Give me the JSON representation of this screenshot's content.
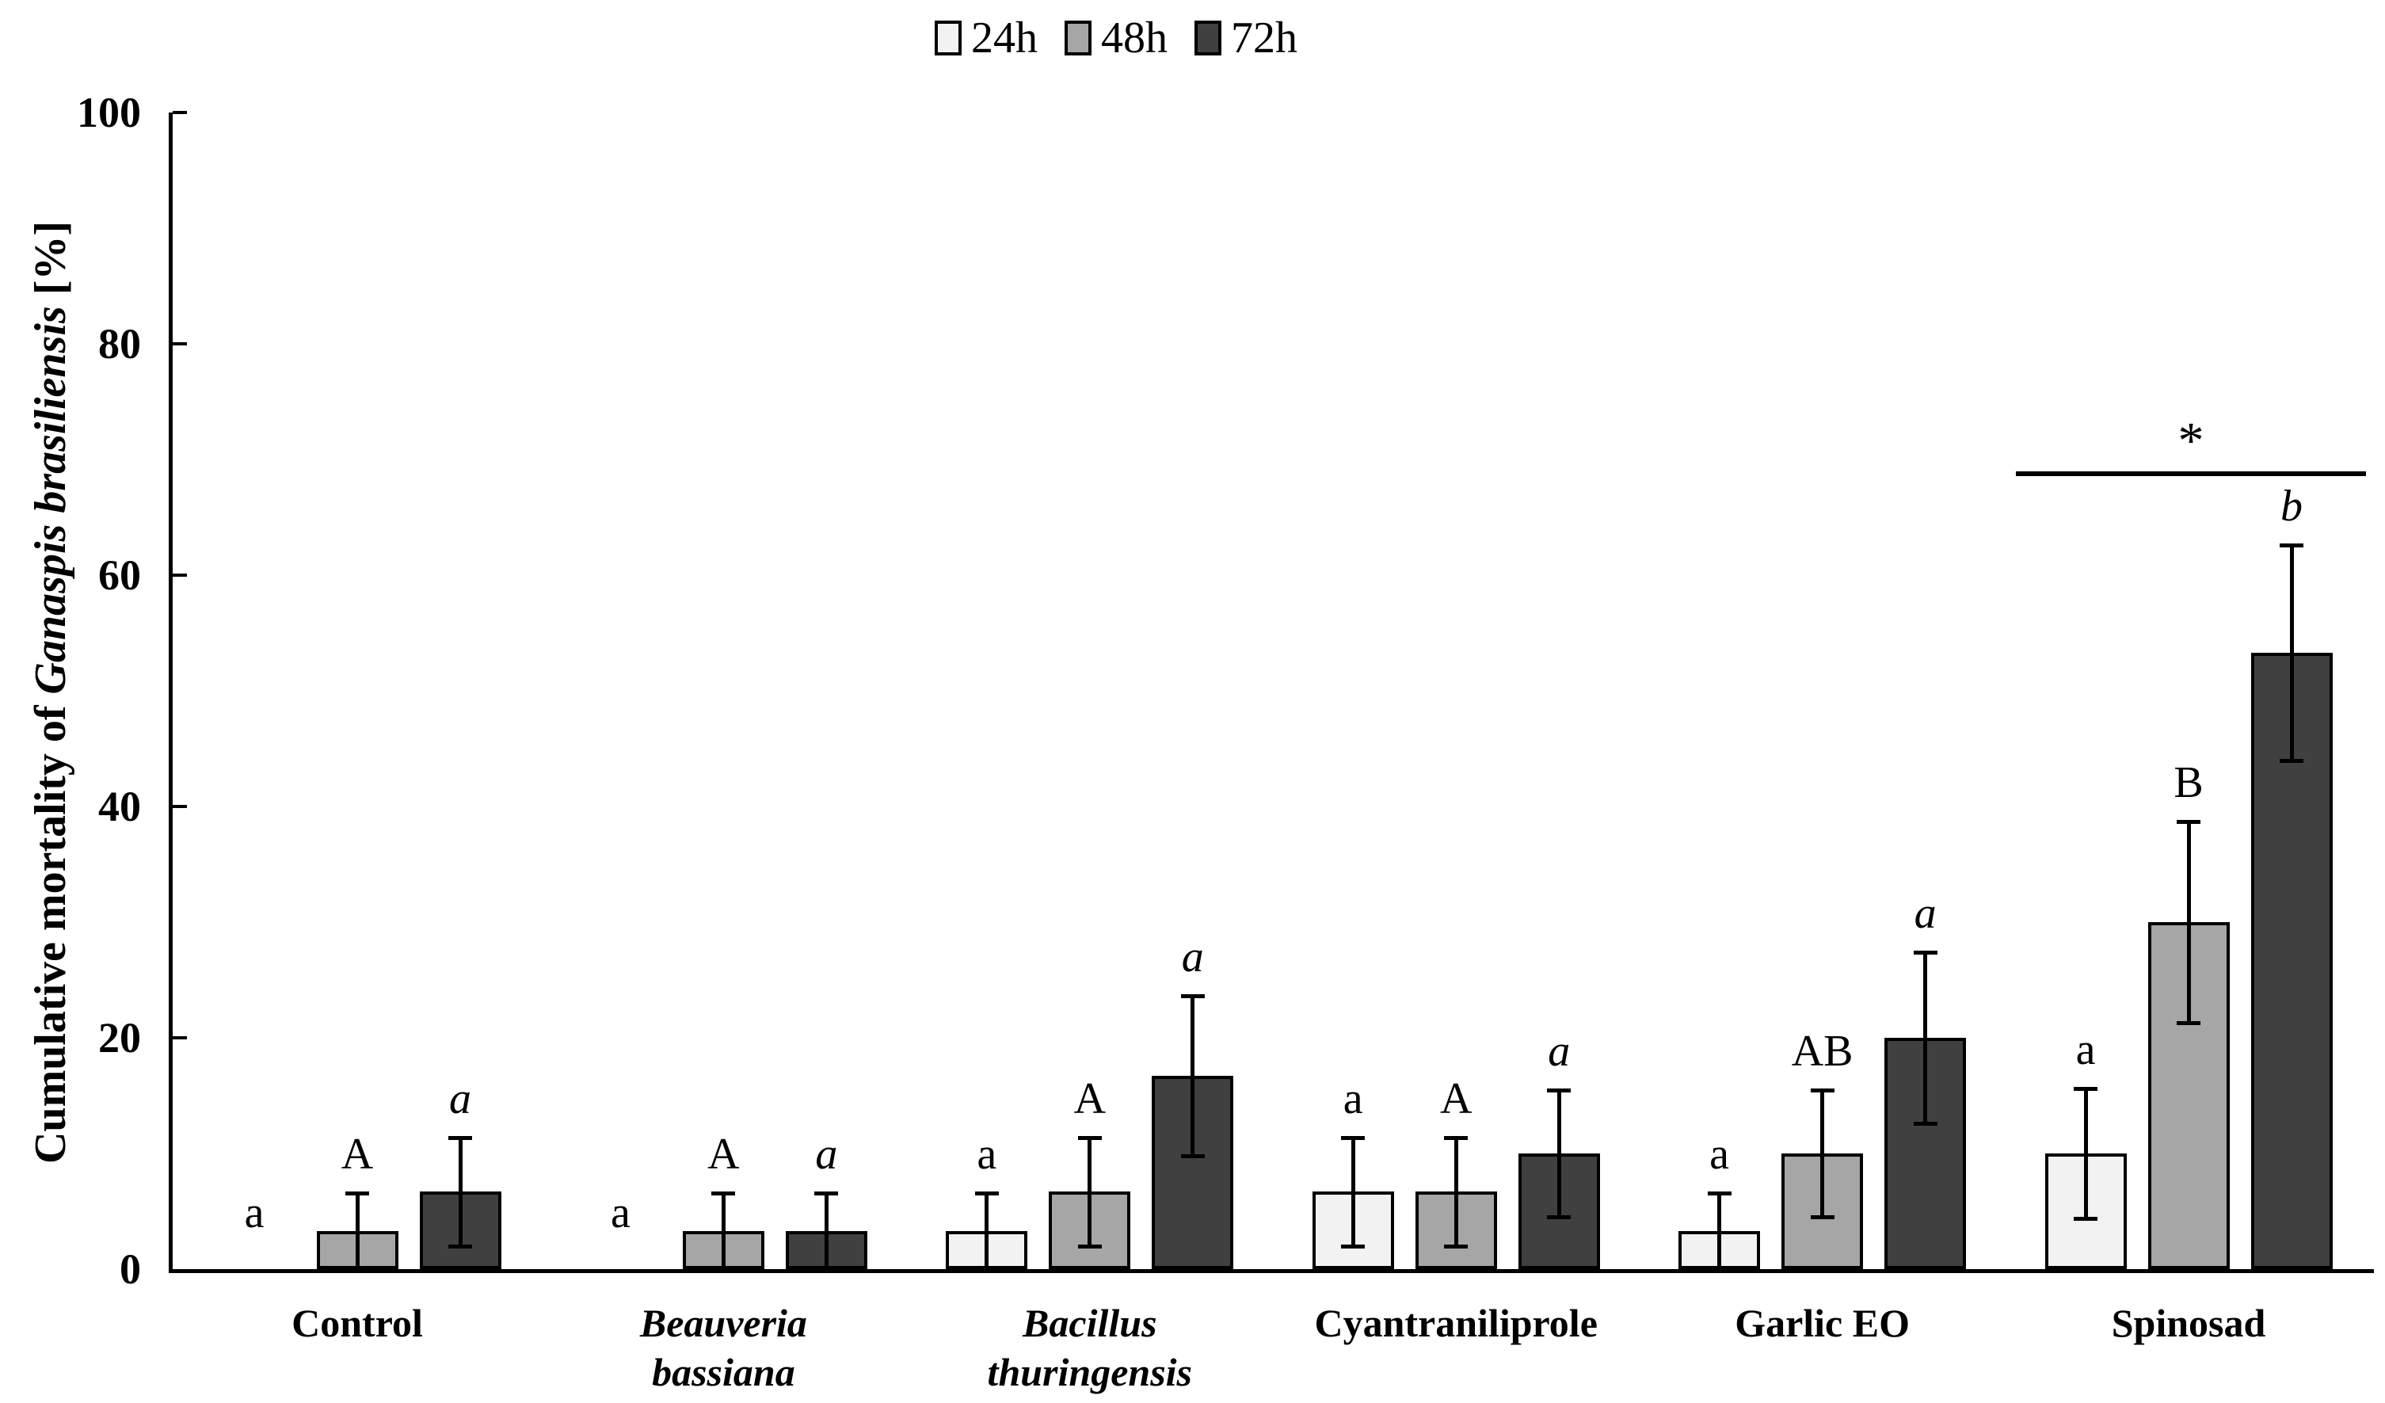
{
  "figure": {
    "background": "#ffffff",
    "axis_color": "#000000"
  },
  "legend": {
    "position": "top-center",
    "items": [
      {
        "label": "24h",
        "color": "#f2f2f2"
      },
      {
        "label": "48h",
        "color": "#a6a6a6"
      },
      {
        "label": "72h",
        "color": "#404040"
      }
    ]
  },
  "ylabel": {
    "prefix": "Cumulative mortality of ",
    "species": "Ganaspis brasiliensis",
    "suffix": " [%]"
  },
  "chart_data": {
    "type": "bar",
    "title": "",
    "xlabel": "",
    "ylabel": "Cumulative mortality of Ganaspis brasiliensis [%]",
    "ylim": [
      0,
      100
    ],
    "yticks": [
      0,
      20,
      40,
      60,
      80,
      100
    ],
    "grid": false,
    "legend_position": "top-center",
    "categories": [
      {
        "lines": [
          "Control"
        ],
        "italic": false
      },
      {
        "lines": [
          "Beauveria",
          "bassiana"
        ],
        "italic": true
      },
      {
        "lines": [
          "Bacillus",
          "thuringensis"
        ],
        "italic": true
      },
      {
        "lines": [
          "Cyantraniliprole"
        ],
        "italic": false
      },
      {
        "lines": [
          "Garlic EO"
        ],
        "italic": false
      },
      {
        "lines": [
          "Spinosad"
        ],
        "italic": false
      }
    ],
    "series": [
      {
        "name": "24h",
        "color": "#f2f2f2",
        "italic_letters": false,
        "values": [
          0,
          0,
          3.3,
          6.7,
          3.3,
          10
        ],
        "errors": [
          0,
          0,
          3.3,
          4.7,
          3.3,
          5.6
        ],
        "letters": [
          "a",
          "a",
          "a",
          "a",
          "a",
          "a"
        ]
      },
      {
        "name": "48h",
        "color": "#a6a6a6",
        "italic_letters": false,
        "values": [
          3.3,
          3.3,
          6.7,
          6.7,
          10,
          30
        ],
        "errors": [
          3.3,
          3.3,
          4.7,
          4.7,
          5.5,
          8.7
        ],
        "letters": [
          "A",
          "A",
          "A",
          "A",
          "AB",
          "B"
        ]
      },
      {
        "name": "72h",
        "color": "#404040",
        "italic_letters": true,
        "values": [
          6.7,
          3.3,
          16.7,
          10,
          20,
          53.3
        ],
        "errors": [
          4.7,
          3.3,
          6.9,
          5.5,
          7.4,
          9.3
        ],
        "letters": [
          "a",
          "a",
          "a",
          "a",
          "a",
          "b"
        ]
      }
    ],
    "significance": {
      "label": "*",
      "category": "Spinosad",
      "category_index": 5,
      "y_value": 69
    }
  }
}
